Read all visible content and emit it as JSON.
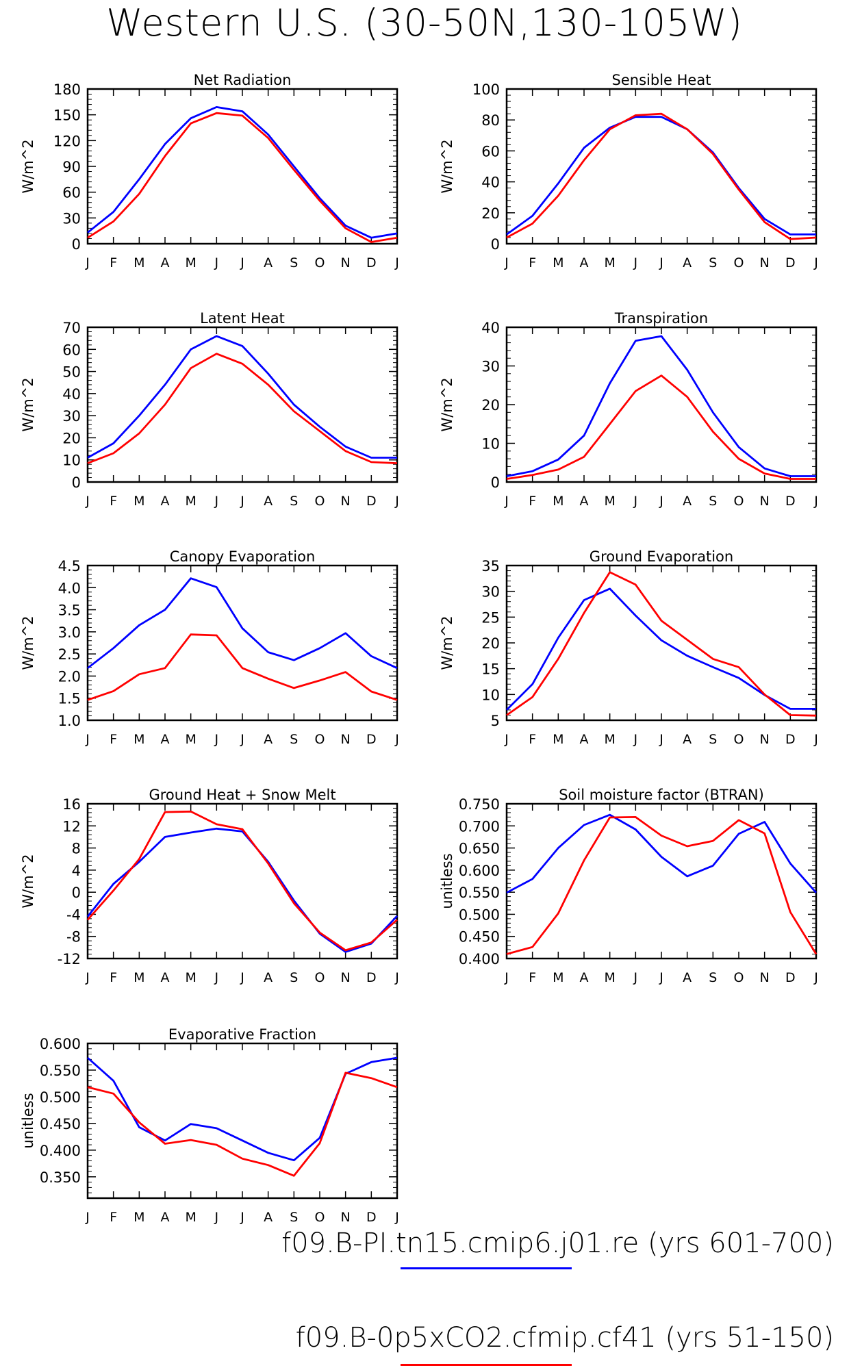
{
  "title": "Western U.S. (30-50N,130-105W)",
  "colors": {
    "series1": "#0000ff",
    "series2": "#ff0000"
  },
  "legend": [
    {
      "label": "f09.B-PI.tn15.cmip6.j01.re (yrs 601-700)",
      "color": "#0000ff"
    },
    {
      "label": "f09.B-0p5xCO2.cfmip.cf41 (yrs 51-150)",
      "color": "#ff0000"
    }
  ],
  "chart_data": [
    {
      "type": "line",
      "title": "Net Radiation",
      "ylabel": "W/m^2",
      "categories": [
        "J",
        "F",
        "M",
        "A",
        "M",
        "J",
        "J",
        "A",
        "S",
        "O",
        "N",
        "D",
        "J"
      ],
      "ylim": [
        0,
        180
      ],
      "yticks": [
        0,
        30,
        60,
        90,
        120,
        150,
        180
      ],
      "ytick_labels": [
        "0",
        "30",
        "60",
        "90",
        "120",
        "150",
        "180"
      ],
      "series": [
        {
          "values": [
            13,
            37,
            75,
            116,
            146,
            159,
            154,
            127,
            90,
            53,
            21,
            7,
            12
          ]
        },
        {
          "values": [
            7,
            26,
            58,
            102,
            140,
            152,
            149,
            123,
            86,
            50,
            18,
            2,
            7
          ]
        }
      ]
    },
    {
      "type": "line",
      "title": "Sensible Heat",
      "ylabel": "W/m^2",
      "categories": [
        "J",
        "F",
        "M",
        "A",
        "M",
        "J",
        "J",
        "A",
        "S",
        "O",
        "N",
        "D",
        "J"
      ],
      "ylim": [
        0,
        100
      ],
      "yticks": [
        0,
        20,
        40,
        60,
        80,
        100
      ],
      "ytick_labels": [
        "0",
        "20",
        "40",
        "60",
        "80",
        "100"
      ],
      "series": [
        {
          "values": [
            6,
            18,
            39,
            62,
            75,
            82,
            82,
            74,
            59,
            36,
            16,
            6,
            6
          ]
        },
        {
          "values": [
            4,
            13,
            31,
            54,
            74,
            83,
            84,
            74,
            58,
            35,
            14,
            3,
            4
          ]
        }
      ]
    },
    {
      "type": "line",
      "title": "Latent Heat",
      "ylabel": "W/m^2",
      "categories": [
        "J",
        "F",
        "M",
        "A",
        "M",
        "J",
        "J",
        "A",
        "S",
        "O",
        "N",
        "D",
        "J"
      ],
      "ylim": [
        0,
        70
      ],
      "yticks": [
        0,
        10,
        20,
        30,
        40,
        50,
        60,
        70
      ],
      "ytick_labels": [
        "0",
        "10",
        "20",
        "30",
        "40",
        "50",
        "60",
        "70"
      ],
      "series": [
        {
          "values": [
            11,
            17.5,
            30,
            44,
            60,
            66,
            61.5,
            49,
            35,
            25,
            16,
            11,
            11
          ]
        },
        {
          "values": [
            8.5,
            13,
            22,
            35,
            51.5,
            58,
            53.5,
            44,
            32,
            23,
            14,
            9,
            8.5
          ]
        }
      ]
    },
    {
      "type": "line",
      "title": "Transpiration",
      "ylabel": "W/m^2",
      "categories": [
        "J",
        "F",
        "M",
        "A",
        "M",
        "J",
        "J",
        "A",
        "S",
        "O",
        "N",
        "D",
        "J"
      ],
      "ylim": [
        0,
        40
      ],
      "yticks": [
        0,
        10,
        20,
        30,
        40
      ],
      "ytick_labels": [
        "0",
        "10",
        "20",
        "30",
        "40"
      ],
      "series": [
        {
          "values": [
            1.5,
            2.8,
            5.8,
            12,
            25.5,
            36.5,
            37.7,
            29,
            18,
            9,
            3.5,
            1.5,
            1.5
          ]
        },
        {
          "values": [
            0.8,
            1.8,
            3.2,
            6.5,
            15,
            23.5,
            27.5,
            22,
            13,
            6,
            2.2,
            0.8,
            0.8
          ]
        }
      ]
    },
    {
      "type": "line",
      "title": "Canopy Evaporation",
      "ylabel": "W/m^2",
      "categories": [
        "J",
        "F",
        "M",
        "A",
        "M",
        "J",
        "J",
        "A",
        "S",
        "O",
        "N",
        "D",
        "J"
      ],
      "ylim": [
        1.0,
        4.5
      ],
      "yticks": [
        1.0,
        1.5,
        2.0,
        2.5,
        3.0,
        3.5,
        4.0,
        4.5
      ],
      "ytick_labels": [
        "1.0",
        "1.5",
        "2.0",
        "2.5",
        "3.0",
        "3.5",
        "4.0",
        "4.5"
      ],
      "series": [
        {
          "values": [
            2.18,
            2.63,
            3.15,
            3.5,
            4.21,
            4.01,
            3.08,
            2.54,
            2.36,
            2.63,
            2.97,
            2.45,
            2.18
          ]
        },
        {
          "values": [
            1.46,
            1.66,
            2.04,
            2.18,
            2.94,
            2.92,
            2.18,
            1.94,
            1.73,
            1.9,
            2.09,
            1.65,
            1.46
          ]
        }
      ]
    },
    {
      "type": "line",
      "title": "Ground Evaporation",
      "ylabel": "W/m^2",
      "categories": [
        "J",
        "F",
        "M",
        "A",
        "M",
        "J",
        "J",
        "A",
        "S",
        "O",
        "N",
        "D",
        "J"
      ],
      "ylim": [
        5,
        35
      ],
      "yticks": [
        5,
        10,
        15,
        20,
        25,
        30,
        35
      ],
      "ytick_labels": [
        "5",
        "10",
        "15",
        "20",
        "25",
        "30",
        "35"
      ],
      "series": [
        {
          "values": [
            7,
            12,
            21,
            28.3,
            30.5,
            25.3,
            20.5,
            17.5,
            15.3,
            13.2,
            9.9,
            7.2,
            7.2
          ]
        },
        {
          "values": [
            6,
            9.5,
            16.9,
            25.8,
            33.7,
            31.3,
            24.3,
            20.6,
            16.9,
            15.3,
            10,
            6,
            5.9
          ]
        }
      ]
    },
    {
      "type": "line",
      "title": "Ground Heat + Snow Melt",
      "ylabel": "W/m^2",
      "categories": [
        "J",
        "F",
        "M",
        "A",
        "M",
        "J",
        "J",
        "A",
        "S",
        "O",
        "N",
        "D",
        "J"
      ],
      "ylim": [
        -12,
        16
      ],
      "yticks": [
        -12,
        -8,
        -4,
        0,
        4,
        8,
        12,
        16
      ],
      "ytick_labels": [
        "-12",
        "-8",
        "-4",
        "0",
        "4",
        "8",
        "12",
        "16"
      ],
      "series": [
        {
          "values": [
            -4.4,
            1.5,
            5.5,
            10,
            10.8,
            11.5,
            11,
            5.5,
            -1.5,
            -7.5,
            -10.8,
            -9.3,
            -4.3
          ]
        },
        {
          "values": [
            -5,
            0.3,
            6,
            14.5,
            14.6,
            12.3,
            11.4,
            5.2,
            -2,
            -7.3,
            -10.5,
            -9.1,
            -5
          ]
        }
      ]
    },
    {
      "type": "line",
      "title": "Soil moisture factor (BTRAN)",
      "ylabel": "unitless",
      "categories": [
        "J",
        "F",
        "M",
        "A",
        "M",
        "J",
        "J",
        "A",
        "S",
        "O",
        "N",
        "D",
        "J"
      ],
      "ylim": [
        0.4,
        0.75
      ],
      "yticks": [
        0.4,
        0.45,
        0.5,
        0.55,
        0.6,
        0.65,
        0.7,
        0.75
      ],
      "ytick_labels": [
        "0.400",
        "0.450",
        "0.500",
        "0.550",
        "0.600",
        "0.650",
        "0.700",
        "0.750"
      ],
      "series": [
        {
          "values": [
            0.549,
            0.58,
            0.65,
            0.702,
            0.725,
            0.692,
            0.63,
            0.586,
            0.61,
            0.682,
            0.709,
            0.615,
            0.549
          ]
        },
        {
          "values": [
            0.41,
            0.426,
            0.502,
            0.622,
            0.719,
            0.72,
            0.678,
            0.654,
            0.666,
            0.713,
            0.683,
            0.505,
            0.41
          ]
        }
      ]
    },
    {
      "type": "line",
      "title": "Evaporative Fraction",
      "ylabel": "unitless",
      "categories": [
        "J",
        "F",
        "M",
        "A",
        "M",
        "J",
        "J",
        "A",
        "S",
        "O",
        "N",
        "D",
        "J"
      ],
      "ylim": [
        0.31,
        0.6
      ],
      "yticks": [
        0.35,
        0.4,
        0.45,
        0.5,
        0.55,
        0.6
      ],
      "ytick_labels": [
        "0.350",
        "0.400",
        "0.450",
        "0.500",
        "0.550",
        "0.600"
      ],
      "series": [
        {
          "values": [
            0.573,
            0.53,
            0.443,
            0.418,
            0.449,
            0.441,
            0.418,
            0.395,
            0.381,
            0.423,
            0.543,
            0.565,
            0.573
          ]
        },
        {
          "values": [
            0.518,
            0.506,
            0.452,
            0.412,
            0.419,
            0.41,
            0.384,
            0.372,
            0.352,
            0.413,
            0.545,
            0.535,
            0.518
          ]
        }
      ]
    }
  ]
}
